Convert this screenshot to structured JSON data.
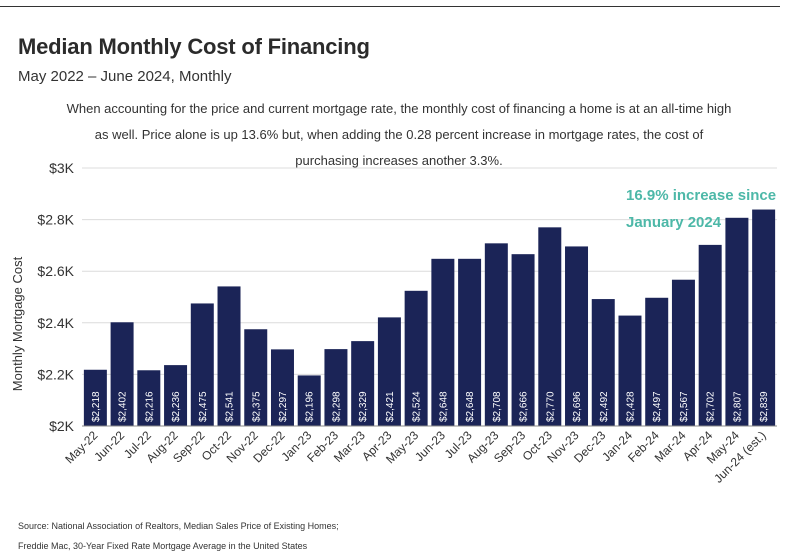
{
  "header": {
    "title": "Median Monthly Cost of Financing",
    "subtitle": "May 2022 – June 2024, Monthly"
  },
  "annotation": "When accounting for the price and current mortgage rate, the monthly cost of financing a home is at an all-time high as well. Price alone is up 13.6% but, when adding the 0.28 percent increase in mortgage rates, the cost of purchasing increases another 3.3%.",
  "callout": {
    "line1": "16.9% increase since",
    "line2": "January 2024",
    "color": "#4db8a8"
  },
  "source": {
    "line1": "Source: National Association of Realtors, Median Sales Price of Existing Homes;",
    "line2": "Freddie Mac, 30-Year Fixed Rate Mortgage Average in the United States"
  },
  "chart_data": {
    "type": "bar",
    "title": "Median Monthly Cost of Financing",
    "subtitle": "May 2022 – June 2024, Monthly",
    "xlabel": "",
    "ylabel": "Monthly Mortgage Cost",
    "ylim": [
      2000,
      3000
    ],
    "yticks": [
      {
        "value": 2000,
        "label": "$2K"
      },
      {
        "value": 2200,
        "label": "$2.2K"
      },
      {
        "value": 2400,
        "label": "$2.4K"
      },
      {
        "value": 2600,
        "label": "$2.6K"
      },
      {
        "value": 2800,
        "label": "$2.8K"
      },
      {
        "value": 3000,
        "label": "$3K"
      }
    ],
    "grid": true,
    "bar_color": "#1b2457",
    "categories": [
      "May-22",
      "Jun-22",
      "Jul-22",
      "Aug-22",
      "Sep-22",
      "Oct-22",
      "Nov-22",
      "Dec-22",
      "Jan-23",
      "Feb-23",
      "Mar-23",
      "Apr-23",
      "May-23",
      "Jun-23",
      "Jul-23",
      "Aug-23",
      "Sep-23",
      "Oct-23",
      "Nov-23",
      "Dec-23",
      "Jan-24",
      "Feb-24",
      "Mar-24",
      "Apr-24",
      "May-24",
      "Jun-24 (est.)"
    ],
    "values": [
      2218,
      2402,
      2216,
      2236,
      2475,
      2541,
      2375,
      2297,
      2196,
      2298,
      2329,
      2421,
      2524,
      2648,
      2648,
      2708,
      2666,
      2770,
      2696,
      2492,
      2428,
      2497,
      2567,
      2702,
      2807,
      2839
    ],
    "value_labels": [
      "$2,218",
      "$2,402",
      "$2,216",
      "$2,236",
      "$2,475",
      "$2,541",
      "$2,375",
      "$2,297",
      "$2,196",
      "$2,298",
      "$2,329",
      "$2,421",
      "$2,524",
      "$2,648",
      "$2,648",
      "$2,708",
      "$2,666",
      "$2,770",
      "$2,696",
      "$2,492",
      "$2,428",
      "$2,497",
      "$2,567",
      "$2,702",
      "$2,807",
      "$2,839"
    ]
  }
}
